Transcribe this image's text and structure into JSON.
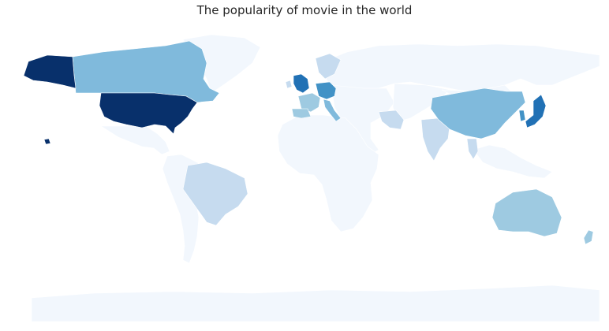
{
  "title": "The popularity of movie in the world",
  "colors": {
    "level_0": "#f2f7fd",
    "level_1": "#c6dbef",
    "level_2": "#9ecae1",
    "level_3": "#80badc",
    "level_4": "#4292c6",
    "level_5": "#2171b5",
    "level_6": "#08306b"
  },
  "regions": [
    {
      "name": "United States",
      "level": 6
    },
    {
      "name": "Canada",
      "level": 3
    },
    {
      "name": "Mexico",
      "level": 0
    },
    {
      "name": "Brazil",
      "level": 1
    },
    {
      "name": "South America",
      "level": 0
    },
    {
      "name": "Greenland",
      "level": 0
    },
    {
      "name": "United Kingdom",
      "level": 5
    },
    {
      "name": "Ireland",
      "level": 1
    },
    {
      "name": "Germany",
      "level": 4
    },
    {
      "name": "France",
      "level": 2
    },
    {
      "name": "Spain",
      "level": 2
    },
    {
      "name": "Italy",
      "level": 3
    },
    {
      "name": "Scandinavia",
      "level": 1
    },
    {
      "name": "Russia",
      "level": 0
    },
    {
      "name": "Africa",
      "level": 0
    },
    {
      "name": "Middle East",
      "level": 0
    },
    {
      "name": "Iran",
      "level": 1
    },
    {
      "name": "India",
      "level": 1
    },
    {
      "name": "China",
      "level": 3
    },
    {
      "name": "Japan",
      "level": 5
    },
    {
      "name": "South Korea",
      "level": 4
    },
    {
      "name": "Southeast Asia",
      "level": 0
    },
    {
      "name": "Thailand",
      "level": 1
    },
    {
      "name": "Australia",
      "level": 2
    },
    {
      "name": "New Zealand",
      "level": 2
    },
    {
      "name": "Antarctica",
      "level": 0
    }
  ]
}
